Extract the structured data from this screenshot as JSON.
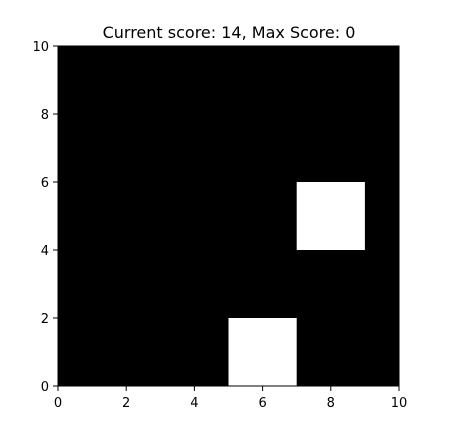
{
  "title": "Current score: 14, Max Score: 0",
  "board": {
    "background_color": "#000000",
    "block_color": "#ffffff",
    "xlim": [
      0,
      10
    ],
    "ylim": [
      0,
      10
    ],
    "x_ticks": [
      0,
      2,
      4,
      6,
      8,
      10
    ],
    "y_ticks": [
      0,
      2,
      4,
      6,
      8,
      10
    ],
    "x_tick_labels": [
      "0",
      "2",
      "4",
      "6",
      "8",
      "10"
    ],
    "y_tick_labels": [
      "0",
      "2",
      "4",
      "6",
      "8",
      "10"
    ],
    "blocks": [
      {
        "name": "block-top-right",
        "x": 7,
        "y": 4,
        "width": 2,
        "height": 2
      },
      {
        "name": "block-bottom",
        "x": 5,
        "y": 0,
        "width": 2,
        "height": 2
      }
    ]
  }
}
